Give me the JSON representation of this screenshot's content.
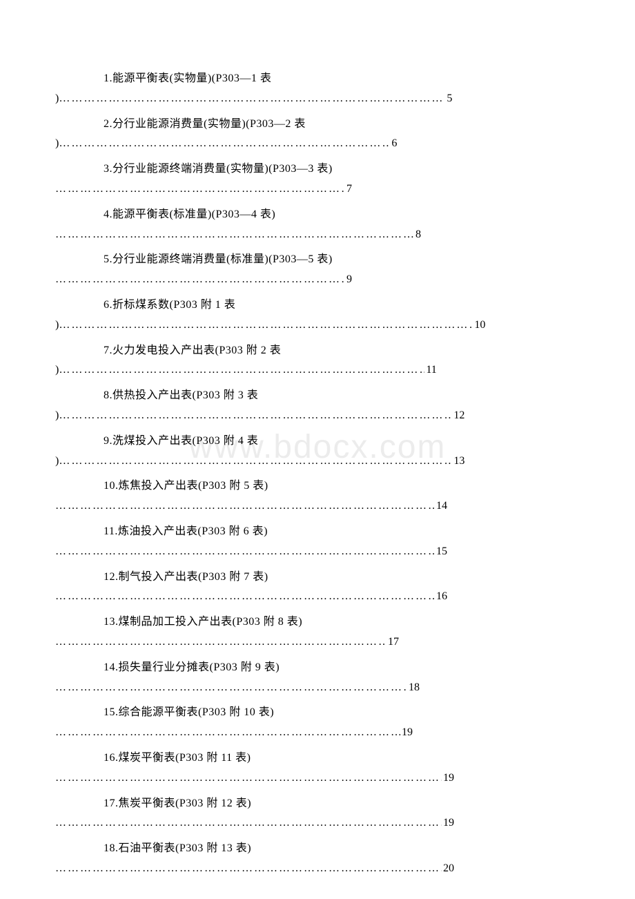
{
  "watermark": "www.bdocx.com",
  "dots_char": "…",
  "toc": {
    "entries": [
      {
        "num": "1",
        "title": "能源平衡表(实物量)(P303—1 表",
        "close_on_dots": ")",
        "page": "5"
      },
      {
        "num": "2",
        "title": "分行业能源消费量(实物量)(P303—2 表",
        "close_on_dots": ")",
        "page": "6"
      },
      {
        "num": "3",
        "title": "分行业能源终端消费量(实物量)(P303—3 表)",
        "close_on_dots": "",
        "page": "7"
      },
      {
        "num": "4",
        "title": "能源平衡表(标准量)(P303—4 表)",
        "close_on_dots": "",
        "page": "8"
      },
      {
        "num": "5",
        "title": "分行业能源终端消费量(标准量)(P303—5 表)",
        "close_on_dots": "",
        "page": "9"
      },
      {
        "num": "6",
        "title": "折标煤系数(P303 附 1 表",
        "close_on_dots": ")",
        "page": "10"
      },
      {
        "num": "7",
        "title": "火力发电投入产出表(P303 附 2 表",
        "close_on_dots": ")",
        "page": "11"
      },
      {
        "num": "8",
        "title": "供热投入产出表(P303 附 3 表",
        "close_on_dots": ")",
        "page": "12"
      },
      {
        "num": "9",
        "title": "洗煤投入产出表(P303 附 4 表",
        "close_on_dots": ")",
        "page": "13"
      },
      {
        "num": "10",
        "title": "炼焦投入产出表(P303 附 5 表)",
        "close_on_dots": "",
        "page": "14"
      },
      {
        "num": "11",
        "title": "炼油投入产出表(P303 附 6 表)",
        "close_on_dots": "",
        "page": "15"
      },
      {
        "num": "12",
        "title": "制气投入产出表(P303 附 7 表)",
        "close_on_dots": "",
        "page": "16"
      },
      {
        "num": "13",
        "title": "煤制品加工投入产出表(P303 附 8 表)",
        "close_on_dots": "",
        "page": "17"
      },
      {
        "num": "14",
        "title": "损失量行业分摊表(P303 附 9 表)",
        "close_on_dots": "",
        "page": "18"
      },
      {
        "num": "15",
        "title": "综合能源平衡表(P303 附 10 表)",
        "close_on_dots": "",
        "page": "19"
      },
      {
        "num": "16",
        "title": "煤炭平衡表(P303 附 11 表)",
        "close_on_dots": "",
        "page": "19"
      },
      {
        "num": "17",
        "title": "焦炭平衡表(P303 附 12 表)",
        "close_on_dots": "",
        "page": "19"
      },
      {
        "num": "18",
        "title": "石油平衡表(P303 附 13 表)",
        "close_on_dots": "",
        "page": "20"
      }
    ],
    "dot_widths": [
      560,
      480,
      420,
      520,
      420,
      600,
      530,
      570,
      570,
      550,
      550,
      550,
      480,
      510,
      500,
      560,
      560,
      560
    ]
  },
  "colors": {
    "text": "#000000",
    "background": "#ffffff",
    "watermark": "rgba(200,200,200,0.35)"
  },
  "typography": {
    "font_family": "SimSun",
    "font_size_pt": 12,
    "line_height": 1.8
  }
}
